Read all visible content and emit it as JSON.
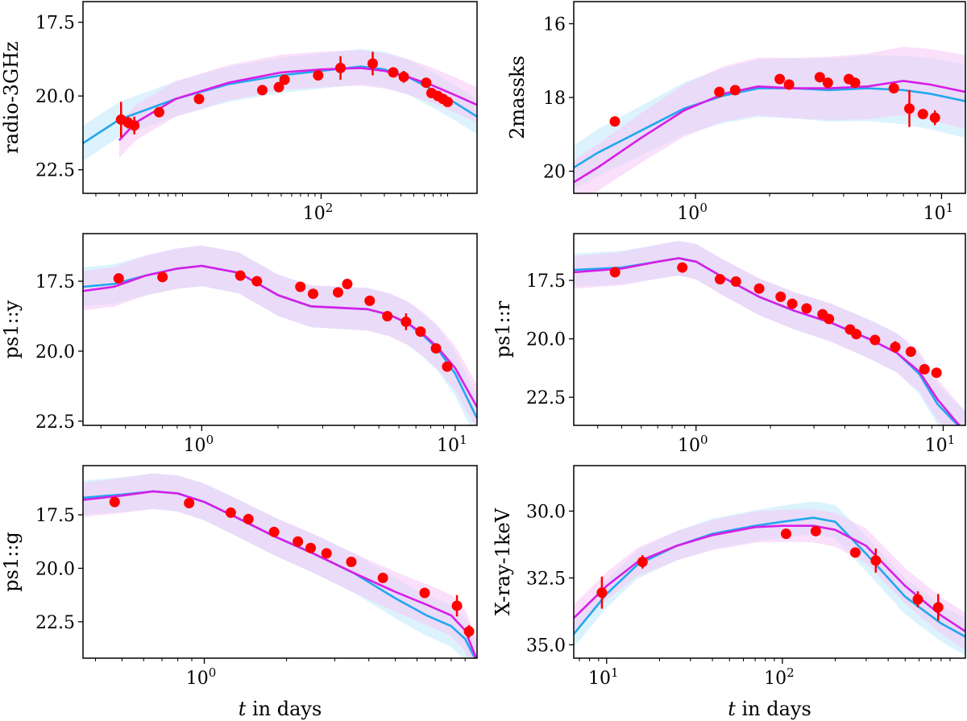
{
  "figure": {
    "colors": {
      "data_point": "#ff0000",
      "model_a": "#22a7ee",
      "model_a_band": "#bfe9fb",
      "model_b": "#d61ee6",
      "model_b_band": "#f6c7f6"
    },
    "xlabel_italic": "t",
    "xlabel_rest": " in days"
  },
  "chart_data": [
    {
      "id": "radio",
      "type": "line",
      "ylabel": "radio-3GHz",
      "xscale": "log",
      "xlim": [
        1.6,
        1500
      ],
      "ylim": [
        23.3,
        16.8
      ],
      "yticks": [
        17.5,
        20.0,
        22.5
      ],
      "ytick_labels": [
        "17.5",
        "20.0",
        "22.5"
      ],
      "xticks": [
        {
          "v": 100,
          "base": "10",
          "exp": "2"
        }
      ],
      "xlabel": "",
      "band_width": [
        0.6,
        0.6
      ],
      "model_a_x": [
        1.6,
        3,
        8,
        20,
        50,
        100,
        200,
        300,
        450,
        700,
        1000,
        1500
      ],
      "model_a_y": [
        21.6,
        20.8,
        20.1,
        19.6,
        19.3,
        19.15,
        19.0,
        19.1,
        19.35,
        19.8,
        20.2,
        20.7
      ],
      "model_b_x": [
        3,
        4,
        8,
        20,
        50,
        100,
        200,
        300,
        450,
        700,
        1000,
        1500
      ],
      "model_b_y": [
        21.5,
        20.9,
        20.1,
        19.55,
        19.2,
        19.1,
        19.05,
        19.15,
        19.35,
        19.65,
        19.95,
        20.3
      ],
      "points": [
        {
          "x": 3.1,
          "y": 20.8,
          "err": 0.6
        },
        {
          "x": 3.5,
          "y": 20.9,
          "err": 0.2
        },
        {
          "x": 3.9,
          "y": 21.0,
          "err": 0.3
        },
        {
          "x": 6,
          "y": 20.55,
          "err": 0.1
        },
        {
          "x": 12,
          "y": 20.1,
          "err": 0.1
        },
        {
          "x": 36,
          "y": 19.8,
          "err": 0.1
        },
        {
          "x": 48,
          "y": 19.7,
          "err": 0.1
        },
        {
          "x": 53,
          "y": 19.45,
          "err": 0.1
        },
        {
          "x": 95,
          "y": 19.3,
          "err": 0.1
        },
        {
          "x": 140,
          "y": 19.05,
          "err": 0.4
        },
        {
          "x": 245,
          "y": 18.9,
          "err": 0.4
        },
        {
          "x": 350,
          "y": 19.2,
          "err": 0.1
        },
        {
          "x": 420,
          "y": 19.35,
          "err": 0.2
        },
        {
          "x": 620,
          "y": 19.55,
          "err": 0.1
        },
        {
          "x": 680,
          "y": 19.9,
          "err": 0.1
        },
        {
          "x": 760,
          "y": 20.0,
          "err": 0.1
        },
        {
          "x": 830,
          "y": 20.1,
          "err": 0.1
        },
        {
          "x": 900,
          "y": 20.2,
          "err": 0.1
        }
      ]
    },
    {
      "id": "2massks",
      "type": "line",
      "ylabel": "2massks",
      "xscale": "log",
      "xlim": [
        0.32,
        12.5
      ],
      "ylim": [
        20.6,
        15.4
      ],
      "yticks": [
        16,
        18,
        20
      ],
      "ytick_labels": [
        "16",
        "18",
        "20"
      ],
      "xticks": [
        {
          "v": 1,
          "base": "10",
          "exp": "0"
        },
        {
          "v": 10,
          "base": "10",
          "exp": "1"
        }
      ],
      "xlabel": "",
      "band_width": [
        0.6,
        1.0
      ],
      "model_a_x": [
        0.32,
        0.4,
        0.6,
        0.9,
        1.3,
        1.8,
        2.5,
        3.5,
        5,
        7,
        9,
        12.5
      ],
      "model_a_y": [
        19.9,
        19.5,
        18.9,
        18.3,
        17.95,
        17.75,
        17.75,
        17.8,
        17.75,
        17.8,
        17.9,
        18.1
      ],
      "model_b_x": [
        0.32,
        0.4,
        0.6,
        0.9,
        1.3,
        1.8,
        2.5,
        3.5,
        5,
        7,
        9,
        12.5
      ],
      "model_b_y": [
        20.3,
        19.9,
        19.1,
        18.35,
        17.9,
        17.7,
        17.75,
        17.75,
        17.7,
        17.55,
        17.65,
        17.85
      ],
      "points": [
        {
          "x": 0.47,
          "y": 18.65,
          "err": 0.05
        },
        {
          "x": 1.25,
          "y": 17.85,
          "err": 0.05
        },
        {
          "x": 1.45,
          "y": 17.8,
          "err": 0.05
        },
        {
          "x": 2.2,
          "y": 17.5,
          "err": 0.05
        },
        {
          "x": 2.4,
          "y": 17.65,
          "err": 0.05
        },
        {
          "x": 3.2,
          "y": 17.45,
          "err": 0.05
        },
        {
          "x": 3.45,
          "y": 17.6,
          "err": 0.05
        },
        {
          "x": 4.2,
          "y": 17.5,
          "err": 0.05
        },
        {
          "x": 4.45,
          "y": 17.6,
          "err": 0.05
        },
        {
          "x": 6.4,
          "y": 17.75,
          "err": 0.05
        },
        {
          "x": 7.4,
          "y": 18.3,
          "err": 0.5
        },
        {
          "x": 8.4,
          "y": 18.45,
          "err": 0.05
        },
        {
          "x": 9.4,
          "y": 18.55,
          "err": 0.2
        }
      ]
    },
    {
      "id": "ps1y",
      "type": "line",
      "ylabel": "ps1::y",
      "xscale": "log",
      "xlim": [
        0.34,
        12.2
      ],
      "ylim": [
        22.65,
        15.8
      ],
      "yticks": [
        17.5,
        20.0,
        22.5
      ],
      "ytick_labels": [
        "17.5",
        "20.0",
        "22.5"
      ],
      "xticks": [
        {
          "v": 1,
          "base": "10",
          "exp": "0"
        },
        {
          "v": 10,
          "base": "10",
          "exp": "1"
        }
      ],
      "xlabel": "",
      "band_width": [
        0.7,
        0.8
      ],
      "model_a_x": [
        0.34,
        0.45,
        0.6,
        0.8,
        1.0,
        1.4,
        2.0,
        2.7,
        3.5,
        4.5,
        5.5,
        6.5,
        7.5,
        8.5,
        10,
        12.2
      ],
      "model_a_y": [
        17.7,
        17.6,
        17.3,
        17.05,
        16.95,
        17.2,
        18.0,
        18.4,
        18.45,
        18.5,
        18.7,
        19.0,
        19.45,
        19.9,
        20.8,
        22.4
      ],
      "model_b_x": [
        0.34,
        0.45,
        0.6,
        0.8,
        1.0,
        1.4,
        2.0,
        2.7,
        3.5,
        4.5,
        5.5,
        6.5,
        7.5,
        8.5,
        10,
        12.2
      ],
      "model_b_y": [
        17.85,
        17.7,
        17.3,
        17.05,
        16.95,
        17.2,
        18.0,
        18.4,
        18.45,
        18.5,
        18.7,
        19.0,
        19.4,
        19.85,
        20.6,
        22.0
      ],
      "points": [
        {
          "x": 0.47,
          "y": 17.4,
          "err": 0.05
        },
        {
          "x": 0.7,
          "y": 17.35,
          "err": 0.05
        },
        {
          "x": 1.42,
          "y": 17.3,
          "err": 0.05
        },
        {
          "x": 1.65,
          "y": 17.5,
          "err": 0.05
        },
        {
          "x": 2.45,
          "y": 17.7,
          "err": 0.05
        },
        {
          "x": 2.75,
          "y": 17.95,
          "err": 0.05
        },
        {
          "x": 3.45,
          "y": 17.9,
          "err": 0.05
        },
        {
          "x": 3.75,
          "y": 17.6,
          "err": 0.05
        },
        {
          "x": 4.6,
          "y": 18.2,
          "err": 0.05
        },
        {
          "x": 5.4,
          "y": 18.75,
          "err": 0.05
        },
        {
          "x": 6.4,
          "y": 18.95,
          "err": 0.3
        },
        {
          "x": 7.3,
          "y": 19.3,
          "err": 0.05
        },
        {
          "x": 8.4,
          "y": 19.9,
          "err": 0.05
        },
        {
          "x": 9.3,
          "y": 20.55,
          "err": 0.05
        }
      ]
    },
    {
      "id": "ps1r",
      "type": "line",
      "ylabel": "ps1::r",
      "xscale": "log",
      "xlim": [
        0.32,
        12.3
      ],
      "ylim": [
        23.7,
        15.5
      ],
      "yticks": [
        17.5,
        20.0,
        22.5
      ],
      "ytick_labels": [
        "17.5",
        "20.0",
        "22.5"
      ],
      "xticks": [
        {
          "v": 1,
          "base": "10",
          "exp": "0"
        },
        {
          "v": 10,
          "base": "10",
          "exp": "1"
        }
      ],
      "xlabel": "",
      "band_width": [
        0.7,
        0.9
      ],
      "model_a_x": [
        0.32,
        0.5,
        0.7,
        0.85,
        1.0,
        1.3,
        1.8,
        2.5,
        3.5,
        5.0,
        6.5,
        8.0,
        9.5,
        11.0,
        12.3
      ],
      "model_a_y": [
        17.05,
        16.95,
        16.7,
        16.55,
        16.7,
        17.4,
        18.2,
        18.8,
        19.3,
        20.0,
        20.6,
        21.5,
        22.8,
        23.5,
        24.0
      ],
      "model_b_x": [
        0.32,
        0.5,
        0.7,
        0.85,
        1.0,
        1.3,
        1.8,
        2.5,
        3.5,
        5.0,
        6.5,
        8.0,
        9.5,
        11.0,
        12.3
      ],
      "model_b_y": [
        17.15,
        17.0,
        16.7,
        16.55,
        16.7,
        17.4,
        18.2,
        18.8,
        19.3,
        20.0,
        20.6,
        21.4,
        22.6,
        23.4,
        24.0
      ],
      "points": [
        {
          "x": 0.47,
          "y": 17.15,
          "err": 0.05
        },
        {
          "x": 0.88,
          "y": 16.95,
          "err": 0.05
        },
        {
          "x": 1.25,
          "y": 17.45,
          "err": 0.05
        },
        {
          "x": 1.45,
          "y": 17.55,
          "err": 0.05
        },
        {
          "x": 1.8,
          "y": 17.85,
          "err": 0.05
        },
        {
          "x": 2.2,
          "y": 18.2,
          "err": 0.05
        },
        {
          "x": 2.45,
          "y": 18.5,
          "err": 0.05
        },
        {
          "x": 2.8,
          "y": 18.7,
          "err": 0.05
        },
        {
          "x": 3.25,
          "y": 18.95,
          "err": 0.05
        },
        {
          "x": 3.45,
          "y": 19.15,
          "err": 0.05
        },
        {
          "x": 4.2,
          "y": 19.6,
          "err": 0.05
        },
        {
          "x": 4.45,
          "y": 19.8,
          "err": 0.05
        },
        {
          "x": 5.3,
          "y": 20.05,
          "err": 0.05
        },
        {
          "x": 6.4,
          "y": 20.35,
          "err": 0.25
        },
        {
          "x": 7.4,
          "y": 20.55,
          "err": 0.05
        },
        {
          "x": 8.4,
          "y": 21.3,
          "err": 0.05
        },
        {
          "x": 9.4,
          "y": 21.45,
          "err": 0.05
        }
      ]
    },
    {
      "id": "ps1g",
      "type": "line",
      "ylabel": "ps1::g",
      "xscale": "log",
      "xlim": [
        0.36,
        9.95
      ],
      "ylim": [
        24.2,
        15.2
      ],
      "yticks": [
        17.5,
        20.0,
        22.5
      ],
      "ytick_labels": [
        "17.5",
        "20.0",
        "22.5"
      ],
      "xticks": [
        {
          "v": 1,
          "base": "10",
          "exp": "0"
        }
      ],
      "xlabel": "t in days",
      "band_width": [
        0.8,
        1.0
      ],
      "model_a_x": [
        0.36,
        0.5,
        0.65,
        0.8,
        1.0,
        1.3,
        1.8,
        2.5,
        3.5,
        5.0,
        6.5,
        8.0,
        9.0,
        9.95
      ],
      "model_a_y": [
        16.7,
        16.55,
        16.4,
        16.5,
        16.9,
        17.6,
        18.5,
        19.3,
        20.2,
        21.4,
        22.2,
        22.7,
        23.3,
        24.4
      ],
      "model_b_x": [
        0.36,
        0.5,
        0.65,
        0.8,
        1.0,
        1.3,
        1.8,
        2.5,
        3.5,
        5.0,
        6.5,
        8.0,
        9.0,
        9.95
      ],
      "model_b_y": [
        16.8,
        16.6,
        16.4,
        16.5,
        16.9,
        17.6,
        18.5,
        19.3,
        20.2,
        21.1,
        21.7,
        22.2,
        22.9,
        24.3
      ],
      "points": [
        {
          "x": 0.47,
          "y": 16.9,
          "err": 0.05
        },
        {
          "x": 0.88,
          "y": 16.95,
          "err": 0.05
        },
        {
          "x": 1.25,
          "y": 17.4,
          "err": 0.05
        },
        {
          "x": 1.45,
          "y": 17.7,
          "err": 0.05
        },
        {
          "x": 1.8,
          "y": 18.3,
          "err": 0.05
        },
        {
          "x": 2.2,
          "y": 18.75,
          "err": 0.05
        },
        {
          "x": 2.45,
          "y": 19.05,
          "err": 0.05
        },
        {
          "x": 2.8,
          "y": 19.3,
          "err": 0.05
        },
        {
          "x": 3.45,
          "y": 19.7,
          "err": 0.05
        },
        {
          "x": 4.5,
          "y": 20.45,
          "err": 0.05
        },
        {
          "x": 6.4,
          "y": 21.15,
          "err": 0.05
        },
        {
          "x": 8.4,
          "y": 21.75,
          "err": 0.5
        },
        {
          "x": 9.3,
          "y": 22.95,
          "err": 0.3
        }
      ]
    },
    {
      "id": "xray",
      "type": "line",
      "ylabel": "X-ray-1keV",
      "xscale": "log",
      "xlim": [
        6.5,
        1100
      ],
      "ylim": [
        35.5,
        28.3
      ],
      "yticks": [
        30.0,
        32.5,
        35.0
      ],
      "ytick_labels": [
        "30.0",
        "32.5",
        "35.0"
      ],
      "xticks": [
        {
          "v": 10,
          "base": "10",
          "exp": "1"
        },
        {
          "v": 100,
          "base": "10",
          "exp": "2"
        }
      ],
      "xlabel": "t in days",
      "band_width": [
        0.5,
        0.7
      ],
      "model_a_x": [
        6.5,
        10,
        15,
        25,
        40,
        70,
        100,
        150,
        200,
        300,
        500,
        800,
        1100
      ],
      "model_a_y": [
        34.6,
        33.1,
        32.0,
        31.3,
        30.85,
        30.55,
        30.4,
        30.25,
        30.4,
        31.6,
        33.2,
        34.2,
        34.7
      ],
      "model_b_x": [
        6.5,
        10,
        15,
        25,
        40,
        70,
        100,
        150,
        200,
        300,
        500,
        800,
        1100
      ],
      "model_b_y": [
        34.0,
        32.8,
        31.9,
        31.3,
        30.9,
        30.6,
        30.55,
        30.55,
        30.7,
        31.3,
        32.8,
        33.9,
        34.5
      ],
      "points": [
        {
          "x": 9.4,
          "y": 33.05,
          "err": 0.6
        },
        {
          "x": 16,
          "y": 31.9,
          "err": 0.25
        },
        {
          "x": 105,
          "y": 30.85,
          "err": 0.05
        },
        {
          "x": 155,
          "y": 30.75,
          "err": 0.05
        },
        {
          "x": 260,
          "y": 31.55,
          "err": 0.15
        },
        {
          "x": 340,
          "y": 31.85,
          "err": 0.45
        },
        {
          "x": 590,
          "y": 33.3,
          "err": 0.3
        },
        {
          "x": 770,
          "y": 33.6,
          "err": 0.5
        }
      ]
    }
  ]
}
